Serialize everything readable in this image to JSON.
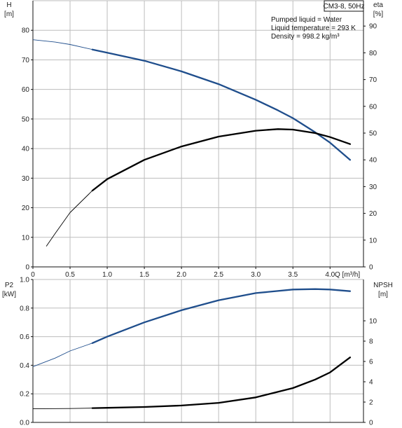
{
  "colors": {
    "blue": "#1f4e8c",
    "black": "#000000",
    "grid": "#bdbdbd",
    "frame": "#111111"
  },
  "header": {
    "title_box": "CM3-8, 50Hz",
    "lines": [
      "Pumped liquid = Water",
      "Liquid temperature = 293 K",
      "Density = 998.2 kg/m³"
    ]
  },
  "chart_data": [
    {
      "type": "line",
      "name": "performance",
      "left_axis_label": [
        "H",
        "[m]"
      ],
      "right_axis_label": [
        "eta",
        "[%]"
      ],
      "x_axis_label": "Q [m³/h]",
      "x_ticks": [
        "0",
        "0.5",
        "1.0",
        "1.5",
        "2.0",
        "2.5",
        "3.0",
        "3.5",
        "4.0"
      ],
      "y_ticks": [
        "0",
        "10",
        "20",
        "30",
        "40",
        "50",
        "60",
        "70",
        "80"
      ],
      "right_ticks": [
        "0",
        "10",
        "20",
        "30",
        "40",
        "50",
        "60",
        "70",
        "80",
        "90"
      ],
      "xlim": [
        0,
        4.45
      ],
      "ylim": [
        0,
        90
      ],
      "grid": true,
      "series": [
        {
          "label": "H",
          "color": "blue",
          "axis": "left",
          "thin_until": 0.8,
          "points": [
            [
              0,
              76.8
            ],
            [
              0.3,
              76
            ],
            [
              0.5,
              75.2
            ],
            [
              0.8,
              73.5
            ],
            [
              1.0,
              72.4
            ],
            [
              1.5,
              69.7
            ],
            [
              2.0,
              66.1
            ],
            [
              2.5,
              61.8
            ],
            [
              3.0,
              56.5
            ],
            [
              3.3,
              52.9
            ],
            [
              3.5,
              50.3
            ],
            [
              3.8,
              45.5
            ],
            [
              4.0,
              42.0
            ],
            [
              4.27,
              36.2
            ]
          ]
        },
        {
          "label": "eta",
          "color": "black",
          "axis": "right",
          "thin_until": 0.8,
          "points": [
            [
              0.18,
              7.7
            ],
            [
              0.3,
              12.5
            ],
            [
              0.5,
              20.3
            ],
            [
              0.8,
              28.5
            ],
            [
              1.0,
              32.8
            ],
            [
              1.5,
              40.0
            ],
            [
              2.0,
              45.0
            ],
            [
              2.5,
              48.7
            ],
            [
              3.0,
              50.9
            ],
            [
              3.3,
              51.5
            ],
            [
              3.5,
              51.3
            ],
            [
              3.8,
              50.0
            ],
            [
              4.0,
              48.5
            ],
            [
              4.27,
              45.9
            ]
          ]
        }
      ]
    },
    {
      "type": "line",
      "name": "power-npsh",
      "left_axis_label": [
        "P2",
        "[kW]"
      ],
      "right_axis_label": [
        "NPSH",
        "[m]"
      ],
      "x_axis_label": "",
      "x_ticks": [],
      "y_ticks": [
        "0.0",
        "0.2",
        "0.4",
        "0.6",
        "0.8",
        "1.0"
      ],
      "right_ticks": [
        "0",
        "2",
        "4",
        "6",
        "8",
        "10"
      ],
      "xlim": [
        0,
        4.45
      ],
      "ylim": [
        0,
        1.0
      ],
      "grid": true,
      "series": [
        {
          "label": "P2",
          "color": "blue",
          "axis": "left",
          "thin_until": 0.8,
          "points": [
            [
              0,
              0.39
            ],
            [
              0.3,
              0.45
            ],
            [
              0.5,
              0.5
            ],
            [
              0.8,
              0.555
            ],
            [
              1.0,
              0.6
            ],
            [
              1.5,
              0.7
            ],
            [
              2.0,
              0.785
            ],
            [
              2.5,
              0.855
            ],
            [
              3.0,
              0.905
            ],
            [
              3.5,
              0.93
            ],
            [
              3.8,
              0.933
            ],
            [
              4.0,
              0.93
            ],
            [
              4.27,
              0.918
            ]
          ]
        },
        {
          "label": "NPSH",
          "color": "black",
          "axis": "left",
          "thin_until": 0.8,
          "points": [
            [
              0,
              0.095
            ],
            [
              0.5,
              0.097
            ],
            [
              0.8,
              0.1
            ],
            [
              1.0,
              0.102
            ],
            [
              1.5,
              0.108
            ],
            [
              2.0,
              0.118
            ],
            [
              2.5,
              0.137
            ],
            [
              3.0,
              0.175
            ],
            [
              3.5,
              0.24
            ],
            [
              3.8,
              0.3
            ],
            [
              4.0,
              0.35
            ],
            [
              4.27,
              0.455
            ]
          ]
        }
      ]
    }
  ]
}
